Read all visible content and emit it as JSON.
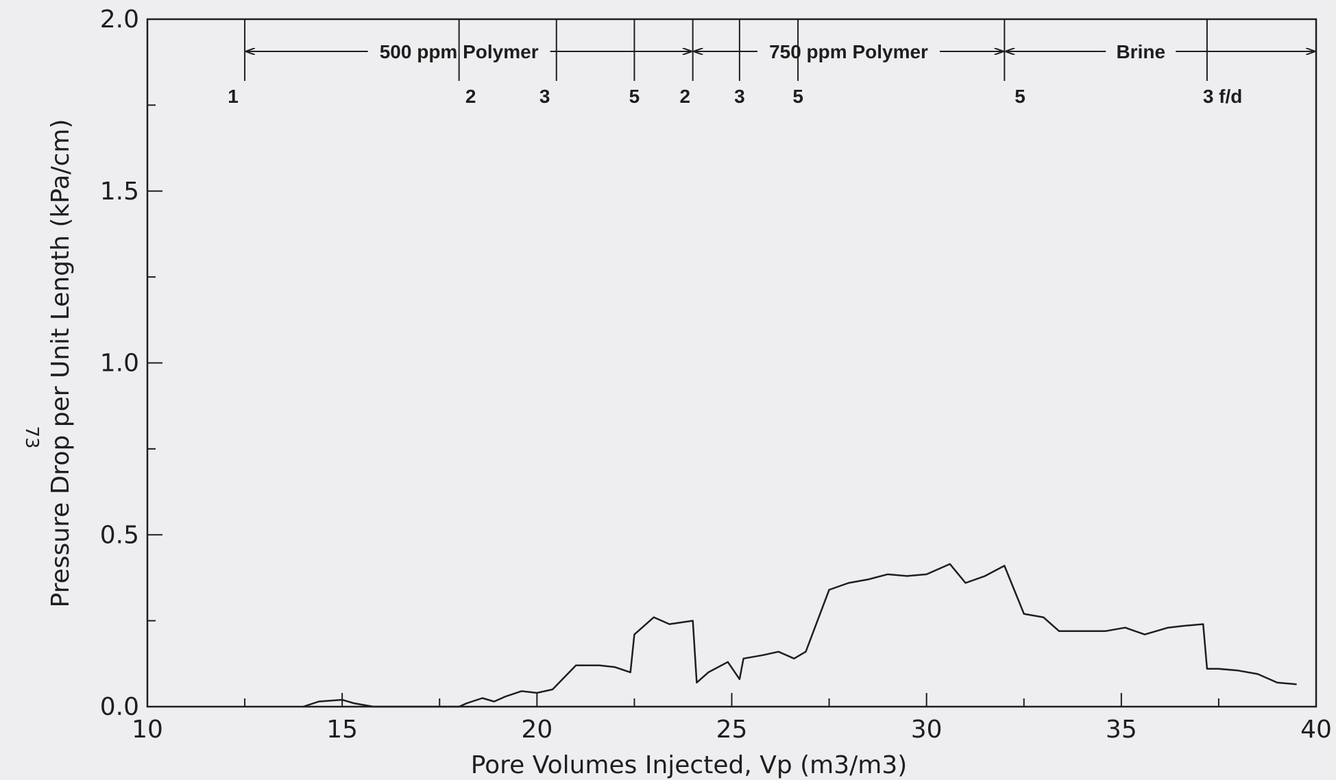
{
  "chart_data": {
    "type": "line",
    "xlabel": "Pore Volumes Injected, Vp (m3/m3)",
    "ylabel": "Pressure Drop per Unit Length (kPa/cm)",
    "xlim": [
      10,
      40
    ],
    "ylim": [
      0,
      2.0
    ],
    "x_ticks": [
      10,
      15,
      20,
      25,
      30,
      35,
      40
    ],
    "x_tick_labels": [
      "10",
      "15",
      "20",
      "25",
      "30",
      "35",
      "40"
    ],
    "y_ticks": [
      0,
      0.5,
      1.0,
      1.5,
      2.0
    ],
    "y_tick_labels": [
      "0.0",
      "0.5",
      "1.0",
      "1.5",
      "2.0"
    ],
    "grid": false,
    "series": [
      {
        "x": [
          14.0,
          14.4,
          15.0,
          15.3,
          15.8,
          16.0,
          18.0,
          18.2,
          18.6,
          18.9,
          19.2,
          19.6,
          20.0,
          20.4,
          21.0,
          21.6,
          22.0,
          22.4,
          22.5,
          23.0,
          23.4,
          24.0,
          24.1,
          24.4,
          24.9,
          25.2,
          25.3,
          25.8,
          26.2,
          26.6,
          26.9,
          27.5,
          28.0,
          28.5,
          29.0,
          29.5,
          30.0,
          30.6,
          31.0,
          31.5,
          32.0,
          32.5,
          33.0,
          33.4,
          34.0,
          34.6,
          35.1,
          35.6,
          36.2,
          36.6,
          37.1,
          37.2,
          37.5,
          38.0,
          38.5,
          39.0,
          39.5
        ],
        "y": [
          0.0,
          0.015,
          0.02,
          0.01,
          0.0,
          0.0,
          0.0,
          0.01,
          0.025,
          0.015,
          0.03,
          0.045,
          0.04,
          0.05,
          0.12,
          0.12,
          0.115,
          0.1,
          0.21,
          0.26,
          0.24,
          0.25,
          0.07,
          0.1,
          0.13,
          0.08,
          0.14,
          0.15,
          0.16,
          0.14,
          0.16,
          0.34,
          0.36,
          0.37,
          0.385,
          0.38,
          0.385,
          0.415,
          0.36,
          0.38,
          0.41,
          0.27,
          0.26,
          0.22,
          0.22,
          0.22,
          0.23,
          0.21,
          0.23,
          0.235,
          0.24,
          0.11,
          0.11,
          0.105,
          0.095,
          0.07,
          0.065
        ]
      }
    ],
    "annotations": {
      "injection_ranges": [
        {
          "label": "500 ppm Polymer",
          "x_start": 12.5,
          "x_end": 24.0,
          "label_x": 18.0
        },
        {
          "label": "750 ppm Polymer",
          "x_start": 24.0,
          "x_end": 32.0,
          "label_x": 28.0
        },
        {
          "label": "Brine",
          "x_start": 32.0,
          "x_end": 40.0,
          "label_x": 35.5
        }
      ],
      "rate_markers": [
        {
          "x": 12.5,
          "label": "1",
          "label_x": 12.2
        },
        {
          "x": 18.0,
          "label": "2",
          "label_x": 18.3
        },
        {
          "x": 20.5,
          "label": "3",
          "label_x": 20.2
        },
        {
          "x": 22.5,
          "label": "5",
          "label_x": 22.5
        },
        {
          "x": 24.0,
          "label": "2",
          "label_x": 23.8
        },
        {
          "x": 25.2,
          "label": "3",
          "label_x": 25.2
        },
        {
          "x": 26.7,
          "label": "5",
          "label_x": 26.7
        },
        {
          "x": 32.0,
          "label": "5",
          "label_x": 32.4
        },
        {
          "x": 37.2,
          "label": "3 f/d",
          "label_x": 37.6
        }
      ]
    }
  },
  "page_number": "73"
}
